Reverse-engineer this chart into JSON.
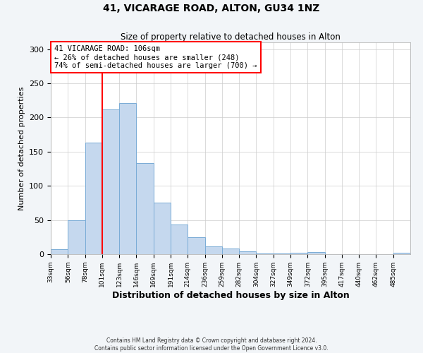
{
  "title": "41, VICARAGE ROAD, ALTON, GU34 1NZ",
  "subtitle": "Size of property relative to detached houses in Alton",
  "xlabel": "Distribution of detached houses by size in Alton",
  "ylabel": "Number of detached properties",
  "bar_values": [
    7,
    50,
    163,
    212,
    221,
    133,
    75,
    43,
    25,
    11,
    8,
    4,
    1,
    1,
    2,
    3,
    0,
    0,
    0,
    0,
    2
  ],
  "bin_labels": [
    "33sqm",
    "56sqm",
    "78sqm",
    "101sqm",
    "123sqm",
    "146sqm",
    "169sqm",
    "191sqm",
    "214sqm",
    "236sqm",
    "259sqm",
    "282sqm",
    "304sqm",
    "327sqm",
    "349sqm",
    "372sqm",
    "395sqm",
    "417sqm",
    "440sqm",
    "462sqm",
    "485sqm"
  ],
  "bar_color": "#c5d8ee",
  "bar_edge_color": "#7aacd6",
  "ylim": [
    0,
    310
  ],
  "yticks": [
    0,
    50,
    100,
    150,
    200,
    250,
    300
  ],
  "annotation_line1": "41 VICARAGE ROAD: 106sqm",
  "annotation_line2": "← 26% of detached houses are smaller (248)",
  "annotation_line3": "74% of semi-detached houses are larger (700) →",
  "footnote1": "Contains HM Land Registry data © Crown copyright and database right 2024.",
  "footnote2": "Contains public sector information licensed under the Open Government Licence v3.0.",
  "background_color": "#f2f5f8",
  "plot_bg_color": "#ffffff",
  "grid_color": "#cccccc"
}
